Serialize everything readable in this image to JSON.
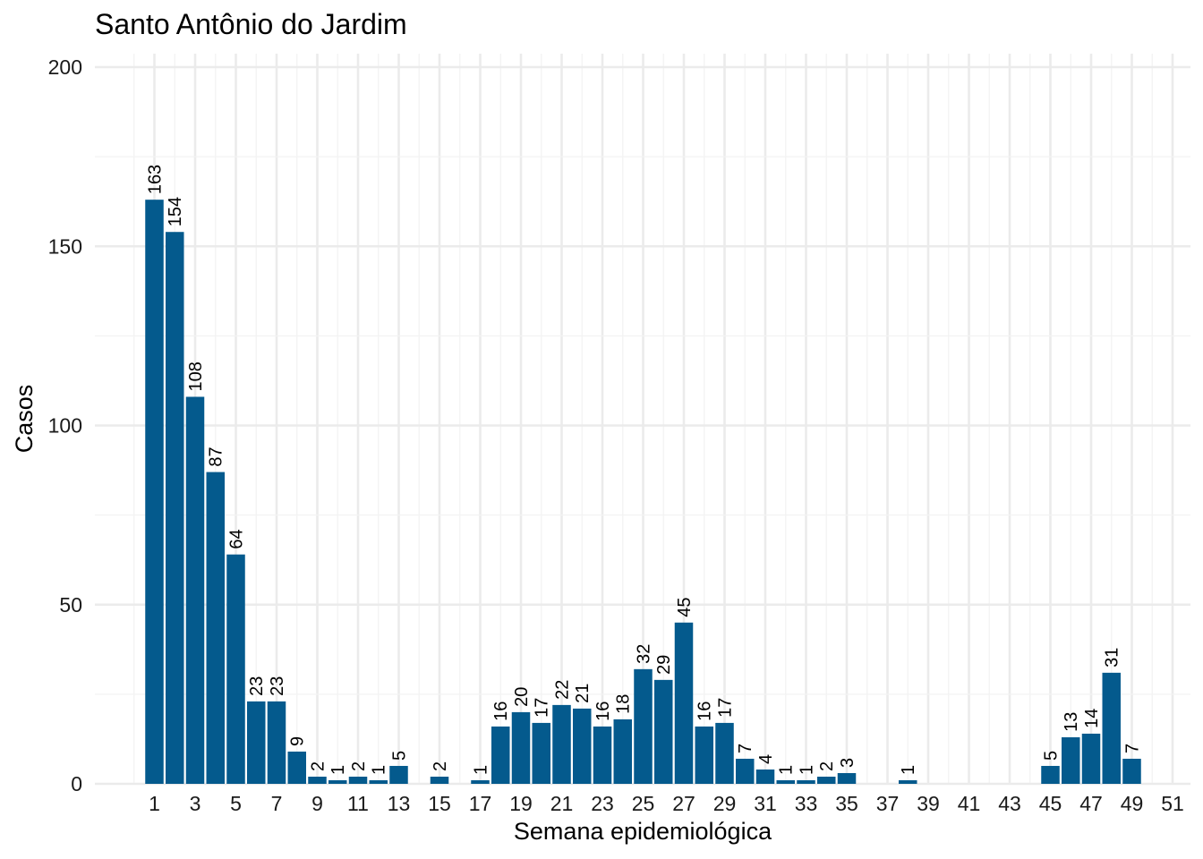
{
  "chart_data": {
    "type": "bar",
    "title": "Santo Antônio do Jardim",
    "xlabel": "Semana epidemiológica",
    "ylabel": "Casos",
    "x": [
      1,
      2,
      3,
      4,
      5,
      6,
      7,
      8,
      9,
      10,
      11,
      12,
      13,
      15,
      17,
      18,
      19,
      20,
      21,
      22,
      23,
      24,
      25,
      26,
      27,
      28,
      29,
      30,
      31,
      32,
      33,
      34,
      35,
      38,
      45,
      46,
      47,
      48,
      49
    ],
    "values": [
      163,
      154,
      108,
      87,
      64,
      23,
      23,
      9,
      2,
      1,
      2,
      1,
      5,
      2,
      1,
      16,
      20,
      17,
      22,
      21,
      16,
      18,
      32,
      29,
      45,
      16,
      17,
      7,
      4,
      1,
      1,
      2,
      3,
      1,
      5,
      13,
      14,
      31,
      7
    ],
    "xlim": [
      0,
      52
    ],
    "x_ticks": [
      "1",
      "3",
      "5",
      "7",
      "9",
      "11",
      "13",
      "15",
      "17",
      "19",
      "21",
      "23",
      "25",
      "27",
      "29",
      "31",
      "33",
      "35",
      "37",
      "39",
      "41",
      "43",
      "45",
      "47",
      "49",
      "51"
    ],
    "ylim": [
      0,
      200
    ],
    "y_ticks": [
      "0",
      "50",
      "100",
      "150",
      "200"
    ],
    "bar_color": "#045A8D",
    "grid": true,
    "legend": "none"
  }
}
